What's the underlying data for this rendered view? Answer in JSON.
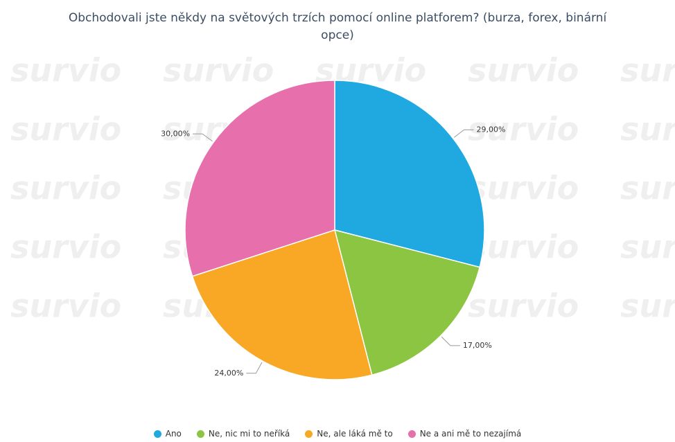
{
  "chart_data": {
    "type": "pie",
    "title": "Obchodovali jste někdy na světových trzích pomocí online platforem? (burza, forex, binární opce)",
    "watermark": "survio",
    "categories": [
      "Ano",
      "Ne, nic mi to neříká",
      "Ne, ale láká mě to",
      "Ne a ani mě to nezajímá"
    ],
    "values": [
      29,
      17,
      24,
      30
    ],
    "value_labels": [
      "29,00%",
      "17,00%",
      "24,00%",
      "30,00%"
    ],
    "colors": [
      "#20a9e1",
      "#8cc541",
      "#f9a825",
      "#e76fac"
    ],
    "legend": "bottom"
  }
}
